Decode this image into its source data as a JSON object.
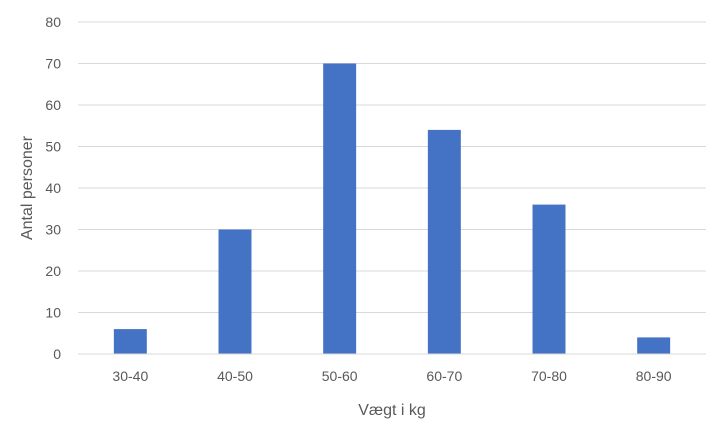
{
  "chart_data": {
    "type": "bar",
    "categories": [
      "30-40",
      "40-50",
      "50-60",
      "60-70",
      "70-80",
      "80-90"
    ],
    "values": [
      6,
      30,
      70,
      54,
      36,
      4
    ],
    "xlabel": "Vægt i kg",
    "ylabel": "Antal personer",
    "ylim": [
      0,
      80
    ],
    "yticks": [
      0,
      10,
      20,
      30,
      40,
      50,
      60,
      70,
      80
    ],
    "grid": true,
    "legend": "none",
    "bar_color": "#4472C4"
  }
}
